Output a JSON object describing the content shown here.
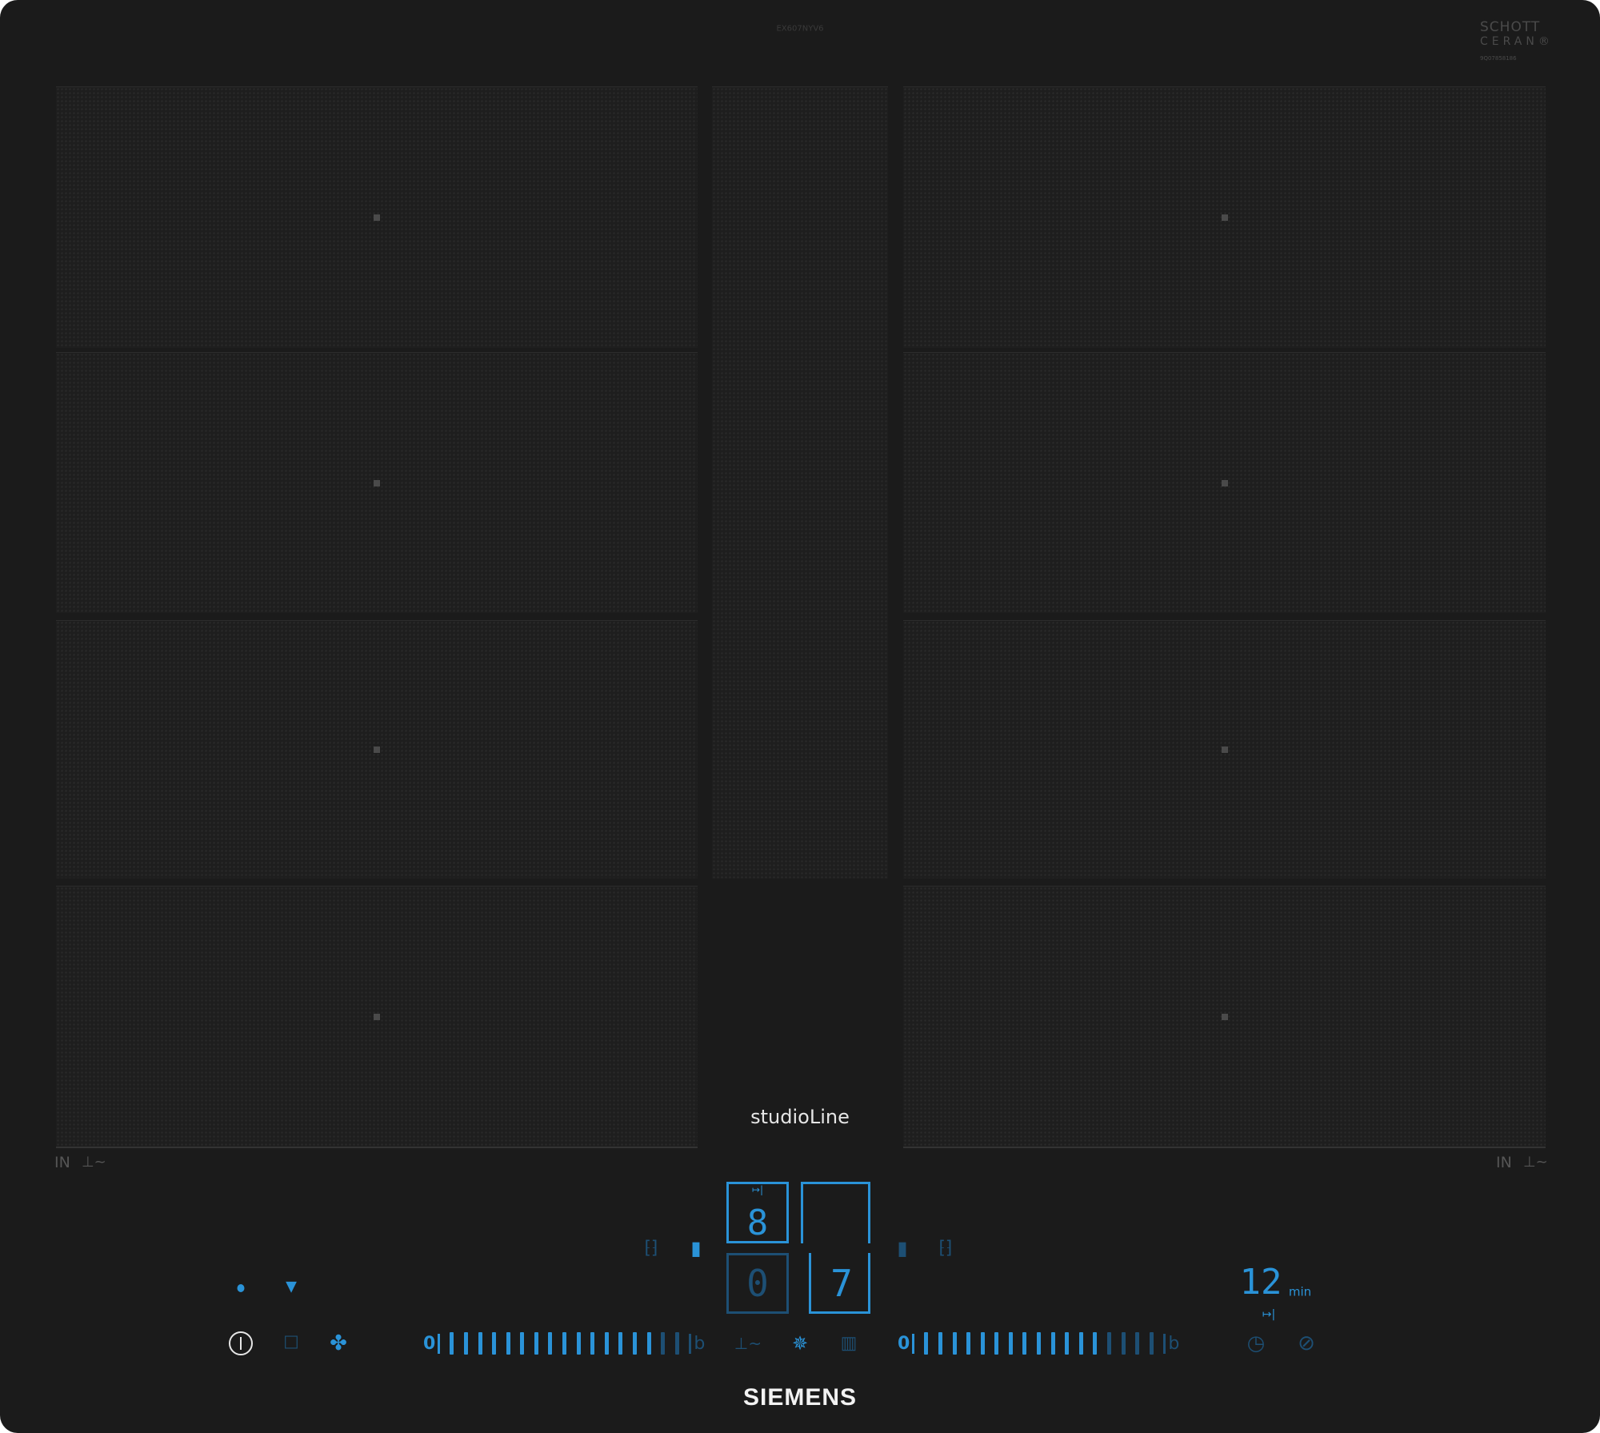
{
  "header": {
    "model": "EX607NYV6",
    "glass_brand_line1": "SCHOTT",
    "glass_brand_line2": "CERAN®",
    "glass_code": "9Q07858186"
  },
  "branding": {
    "series": "studioLine",
    "brand": "SIEMENS"
  },
  "labels": {
    "left_in": "IN",
    "right_in": "IN"
  },
  "center_display": {
    "top_left_digit": "8",
    "top_right_digit": "",
    "bottom_left_digit": "0",
    "bottom_right_digit": "7"
  },
  "hood_slider": {
    "min_label": "0",
    "max_label": "b",
    "segments": 17,
    "active": 15
  },
  "zone_slider": {
    "min_label": "0",
    "max_label": "b",
    "segments": 17,
    "active": 13
  },
  "timer": {
    "value": "12",
    "unit": "min"
  },
  "icons": {
    "status": [
      "status-dot-icon",
      "wifi-icon"
    ],
    "left_controls": [
      "power-icon",
      "wipe-protection-icon",
      "hood-fan-icon"
    ],
    "center_controls": [
      "frying-sensor-icon",
      "hood-light-icon",
      "cooking-sensor-icon"
    ],
    "timer_controls": [
      "clock-timer-icon",
      "stopwatch-icon"
    ],
    "zone_selectors": [
      "flex-zone-left-icon",
      "zone-select-left-icon",
      "zone-select-right-icon",
      "flex-zone-right-icon"
    ]
  },
  "colors": {
    "accent": "#2a93d8",
    "dim": "#1d4f74",
    "glass": "#1b1b1b"
  }
}
